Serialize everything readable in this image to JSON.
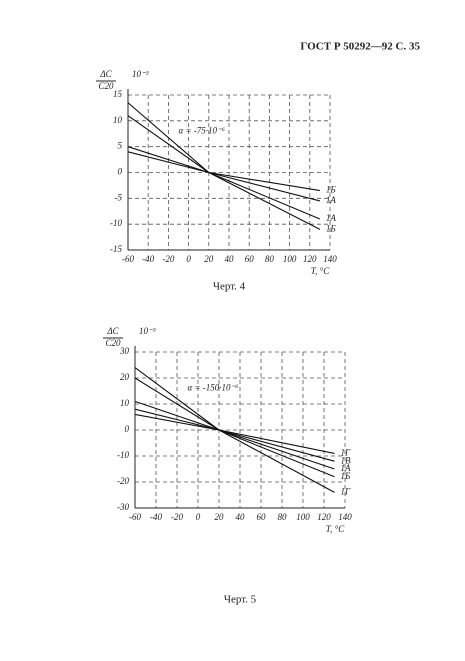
{
  "header": "ГОСТ Р 50292—92 С. 35",
  "chart_data": [
    {
      "type": "line",
      "caption": "Черт. 4",
      "y_label_top": "ΔC",
      "y_label_bottom": "C20",
      "y_unit": "10⁻³",
      "x_label": "T, °C",
      "annotation": "α = -75·10⁻⁶",
      "x": [
        -60,
        20,
        130
      ],
      "xlim": [
        -60,
        140
      ],
      "xticks": [
        -60,
        -40,
        -20,
        0,
        20,
        40,
        60,
        80,
        100,
        120,
        140
      ],
      "ylim": [
        -15,
        15
      ],
      "yticks": [
        15,
        10,
        5,
        0,
        -5,
        -10,
        -15
      ],
      "grid": true,
      "series": [
        {
          "name": "1Б",
          "color": "#111111",
          "values": [
            4,
            0,
            -3.5
          ]
        },
        {
          "name": "1А",
          "color": "#111111",
          "values": [
            5,
            0,
            -5.5
          ]
        },
        {
          "name": "1А",
          "color": "#111111",
          "values": [
            11,
            0,
            -9
          ]
        },
        {
          "name": "1Б",
          "color": "#111111",
          "values": [
            13.5,
            0,
            -11
          ]
        }
      ]
    },
    {
      "type": "line",
      "caption": "Черт. 5",
      "y_label_top": "ΔC",
      "y_label_bottom": "C20",
      "y_unit": "10⁻³",
      "x_label": "T, °C",
      "annotation": "α = -150·10⁻⁶",
      "x": [
        -60,
        20,
        130
      ],
      "xlim": [
        -60,
        140
      ],
      "xticks": [
        -60,
        -40,
        -20,
        0,
        20,
        40,
        60,
        80,
        100,
        120,
        140
      ],
      "ylim": [
        -30,
        30
      ],
      "yticks": [
        30,
        20,
        10,
        0,
        -10,
        -20,
        -30
      ],
      "grid": true,
      "series": [
        {
          "name": "1Г",
          "color": "#111111",
          "values": [
            6,
            0,
            -9
          ]
        },
        {
          "name": "1В",
          "color": "#111111",
          "values": [
            8,
            0,
            -12
          ]
        },
        {
          "name": "1А",
          "color": "#111111",
          "values": [
            11,
            0,
            -15
          ]
        },
        {
          "name": "1Б",
          "color": "#111111",
          "values": [
            20,
            0,
            -18
          ]
        },
        {
          "name": "1Г",
          "color": "#111111",
          "values": [
            24,
            0,
            -24
          ]
        }
      ]
    }
  ]
}
